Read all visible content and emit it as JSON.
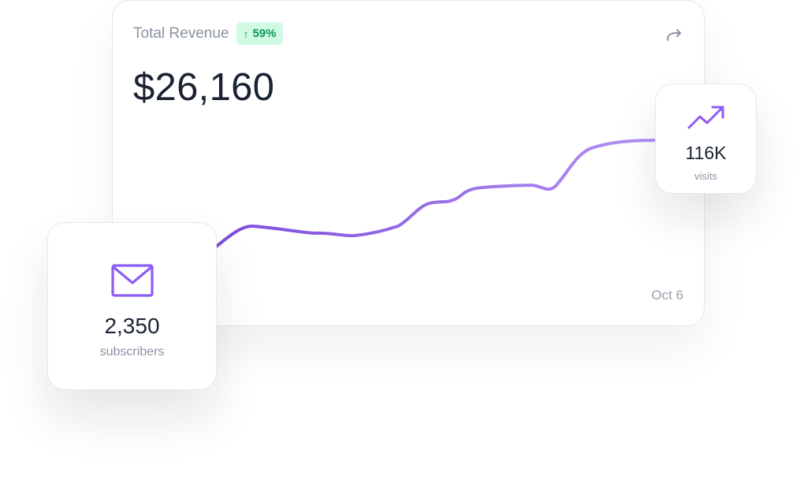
{
  "revenue_card": {
    "title": "Total Revenue",
    "growth_badge": "59%",
    "growth_arrow": "↑",
    "value": "$26,160",
    "date_label": "Oct 6",
    "share_icon": "share-arrow-icon"
  },
  "subscribers_card": {
    "icon": "mail-icon",
    "value": "2,350",
    "label": "subscribers"
  },
  "visits_card": {
    "icon": "trending-up-icon",
    "value": "116K",
    "label": "visits"
  },
  "colors": {
    "line_start": "#7c4ddb",
    "line_end": "#b491f5",
    "accent": "#8b5cf6",
    "badge_bg": "#d1fae5",
    "badge_text": "#10975d"
  }
}
